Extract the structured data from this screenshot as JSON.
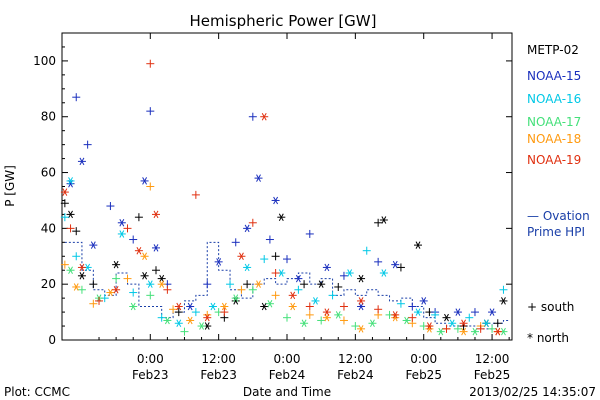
{
  "chart_data": {
    "type": "scatter",
    "title": "Hemispheric Power [GW]",
    "ylabel": "P [GW]",
    "xlabel": "Date and Time",
    "ylim": [
      0,
      110
    ],
    "yticks": [
      0,
      20,
      40,
      60,
      80,
      100
    ],
    "xlim_hours": [
      -15.5,
      63.5
    ],
    "xticks": [
      {
        "h": 0,
        "time": "0:00",
        "date": "Feb23"
      },
      {
        "h": 12,
        "time": "12:00",
        "date": "Feb23"
      },
      {
        "h": 24,
        "time": "0:00",
        "date": "Feb24"
      },
      {
        "h": 36,
        "time": "12:00",
        "date": "Feb24"
      },
      {
        "h": 48,
        "time": "0:00",
        "date": "Feb25"
      },
      {
        "h": 60,
        "time": "12:00",
        "date": "Feb25"
      }
    ],
    "series": [
      {
        "name": "METP-02",
        "color": "#000000",
        "points": [
          [
            -15,
            49
          ],
          [
            -14,
            45
          ],
          [
            -13,
            39
          ],
          [
            -12,
            23
          ],
          [
            -10,
            20
          ],
          [
            -6,
            27
          ],
          [
            -2,
            44
          ],
          [
            -1,
            23
          ],
          [
            1,
            25
          ],
          [
            2,
            22
          ],
          [
            5,
            10
          ],
          [
            10,
            5
          ],
          [
            13,
            8
          ],
          [
            15,
            14
          ],
          [
            17,
            20
          ],
          [
            20,
            12
          ],
          [
            22,
            30
          ],
          [
            23,
            44
          ],
          [
            27,
            20
          ],
          [
            30,
            20
          ],
          [
            33,
            19
          ],
          [
            37,
            22
          ],
          [
            40,
            42
          ],
          [
            41,
            43
          ],
          [
            44,
            26
          ],
          [
            47,
            34
          ],
          [
            49,
            10
          ],
          [
            52,
            8
          ],
          [
            55,
            5
          ],
          [
            59,
            6
          ],
          [
            61,
            6
          ],
          [
            62,
            14
          ]
        ]
      },
      {
        "name": "NOAA-15",
        "color": "#1a2fbd",
        "points": [
          [
            -14,
            56
          ],
          [
            -13,
            87
          ],
          [
            -12,
            64
          ],
          [
            -11,
            70
          ],
          [
            -10,
            34
          ],
          [
            -7,
            48
          ],
          [
            -5,
            42
          ],
          [
            -3,
            36
          ],
          [
            -1,
            57
          ],
          [
            0,
            82
          ],
          [
            1,
            33
          ],
          [
            3,
            20
          ],
          [
            7,
            12
          ],
          [
            10,
            20
          ],
          [
            12,
            28
          ],
          [
            15,
            35
          ],
          [
            17,
            40
          ],
          [
            18,
            80
          ],
          [
            19,
            58
          ],
          [
            21,
            36
          ],
          [
            22,
            50
          ],
          [
            24,
            29
          ],
          [
            26,
            22
          ],
          [
            28,
            38
          ],
          [
            31,
            26
          ],
          [
            34,
            23
          ],
          [
            37,
            12
          ],
          [
            40,
            28
          ],
          [
            43,
            27
          ],
          [
            46,
            12
          ],
          [
            48,
            14
          ],
          [
            50,
            10
          ],
          [
            54,
            10
          ],
          [
            57,
            10
          ],
          [
            60,
            10
          ]
        ]
      },
      {
        "name": "NOAA-16",
        "color": "#00c8e6",
        "points": [
          [
            -15,
            44
          ],
          [
            -14,
            57
          ],
          [
            -13,
            30
          ],
          [
            -11,
            26
          ],
          [
            -8,
            15
          ],
          [
            -5,
            38
          ],
          [
            -3,
            17
          ],
          [
            0,
            20
          ],
          [
            2,
            8
          ],
          [
            5,
            6
          ],
          [
            8,
            10
          ],
          [
            11,
            12
          ],
          [
            14,
            20
          ],
          [
            17,
            26
          ],
          [
            20,
            29
          ],
          [
            23,
            24
          ],
          [
            26,
            18
          ],
          [
            29,
            14
          ],
          [
            32,
            16
          ],
          [
            35,
            24
          ],
          [
            38,
            32
          ],
          [
            41,
            24
          ],
          [
            44,
            13
          ],
          [
            47,
            10
          ],
          [
            50,
            9
          ],
          [
            53,
            6
          ],
          [
            56,
            8
          ],
          [
            59,
            6
          ],
          [
            62,
            18
          ]
        ]
      },
      {
        "name": "NOAA-17",
        "color": "#44e07a",
        "points": [
          [
            -14,
            25
          ],
          [
            -12,
            18
          ],
          [
            -9,
            15
          ],
          [
            -6,
            22
          ],
          [
            -3,
            12
          ],
          [
            0,
            16
          ],
          [
            3,
            7
          ],
          [
            6,
            3
          ],
          [
            9,
            5
          ],
          [
            12,
            10
          ],
          [
            15,
            15
          ],
          [
            18,
            18
          ],
          [
            21,
            13
          ],
          [
            24,
            8
          ],
          [
            27,
            6
          ],
          [
            30,
            7
          ],
          [
            33,
            9
          ],
          [
            36,
            5
          ],
          [
            39,
            6
          ],
          [
            42,
            9
          ],
          [
            45,
            7
          ],
          [
            48,
            5
          ],
          [
            51,
            3
          ],
          [
            54,
            4
          ],
          [
            57,
            3
          ],
          [
            60,
            4
          ],
          [
            62,
            3
          ]
        ]
      },
      {
        "name": "NOAA-18",
        "color": "#ff9a10",
        "points": [
          [
            -15,
            27
          ],
          [
            -13,
            19
          ],
          [
            -10,
            13
          ],
          [
            -7,
            17
          ],
          [
            -4,
            22
          ],
          [
            -1,
            30
          ],
          [
            0,
            55
          ],
          [
            2,
            20
          ],
          [
            4,
            11
          ],
          [
            7,
            7
          ],
          [
            10,
            9
          ],
          [
            13,
            12
          ],
          [
            16,
            18
          ],
          [
            19,
            20
          ],
          [
            22,
            16
          ],
          [
            25,
            12
          ],
          [
            28,
            9
          ],
          [
            31,
            8
          ],
          [
            34,
            7
          ],
          [
            37,
            4
          ],
          [
            40,
            9
          ],
          [
            43,
            8
          ],
          [
            46,
            6
          ],
          [
            49,
            4
          ],
          [
            52,
            4
          ],
          [
            55,
            3
          ],
          [
            58,
            5
          ],
          [
            61,
            3
          ]
        ]
      },
      {
        "name": "NOAA-19",
        "color": "#e03010",
        "points": [
          [
            -15,
            53
          ],
          [
            -14,
            40
          ],
          [
            -12,
            26
          ],
          [
            -9,
            14
          ],
          [
            -6,
            18
          ],
          [
            -4,
            40
          ],
          [
            -2,
            32
          ],
          [
            0,
            99
          ],
          [
            1,
            45
          ],
          [
            3,
            18
          ],
          [
            5,
            12
          ],
          [
            8,
            52
          ],
          [
            10,
            8
          ],
          [
            13,
            10
          ],
          [
            16,
            30
          ],
          [
            18,
            42
          ],
          [
            20,
            80
          ],
          [
            22,
            24
          ],
          [
            25,
            16
          ],
          [
            28,
            12
          ],
          [
            31,
            10
          ],
          [
            34,
            12
          ],
          [
            37,
            14
          ],
          [
            40,
            11
          ],
          [
            43,
            9
          ],
          [
            46,
            8
          ],
          [
            49,
            5
          ],
          [
            52,
            4
          ],
          [
            55,
            6
          ],
          [
            58,
            4
          ],
          [
            61,
            3
          ]
        ]
      },
      {
        "name": "Ovation Prime HPI",
        "color": "#1a3fa8",
        "points": [
          [
            -15,
            35
          ],
          [
            -12,
            25
          ],
          [
            -10,
            18
          ],
          [
            -8,
            16
          ],
          [
            -6,
            24
          ],
          [
            -4,
            20
          ],
          [
            -2,
            12
          ],
          [
            2,
            8
          ],
          [
            4,
            10
          ],
          [
            6,
            14
          ],
          [
            8,
            16
          ],
          [
            10,
            35
          ],
          [
            12,
            25
          ],
          [
            14,
            18
          ],
          [
            16,
            15
          ],
          [
            18,
            20
          ],
          [
            20,
            22
          ],
          [
            22,
            20
          ],
          [
            24,
            22
          ],
          [
            26,
            24
          ],
          [
            28,
            20
          ],
          [
            30,
            22
          ],
          [
            32,
            16
          ],
          [
            34,
            18
          ],
          [
            36,
            16
          ],
          [
            38,
            18
          ],
          [
            40,
            16
          ],
          [
            42,
            14
          ],
          [
            44,
            15
          ],
          [
            46,
            12
          ],
          [
            48,
            8
          ],
          [
            50,
            6
          ],
          [
            52,
            5
          ],
          [
            54,
            5
          ],
          [
            56,
            5
          ],
          [
            58,
            4
          ],
          [
            60,
            6
          ],
          [
            62,
            7
          ],
          [
            63,
            7
          ]
        ]
      }
    ],
    "marker_legend": {
      "south": "+ south",
      "north": "* north"
    }
  },
  "footer": {
    "plot_label": "Plot: CCMC",
    "timestamp": "2013/02/25 14:35:07"
  }
}
